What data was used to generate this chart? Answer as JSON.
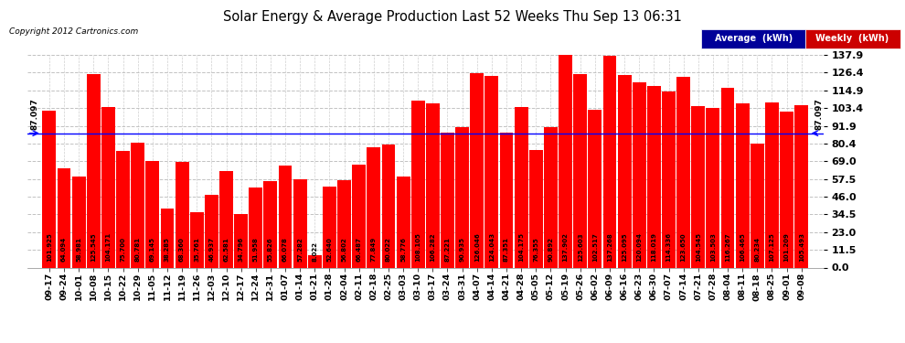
{
  "title": "Solar Energy & Average Production Last 52 Weeks Thu Sep 13 06:31",
  "copyright": "Copyright 2012 Cartronics.com",
  "average_line": 87.097,
  "average_label": "87.097",
  "bar_color": "#ff0000",
  "average_line_color": "#0000ff",
  "background_color": "#ffffff",
  "plot_bg_color": "#ffffff",
  "grid_color": "#bbbbbb",
  "ylim": [
    0,
    137.9
  ],
  "yticks": [
    0.0,
    11.5,
    23.0,
    34.5,
    46.0,
    57.5,
    69.0,
    80.4,
    91.9,
    103.4,
    114.9,
    126.4,
    137.9
  ],
  "legend_avg_color": "#000099",
  "legend_weekly_color": "#cc0000",
  "categories": [
    "09-17",
    "09-24",
    "10-01",
    "10-08",
    "10-15",
    "10-22",
    "10-29",
    "11-05",
    "11-12",
    "11-19",
    "11-26",
    "12-03",
    "12-10",
    "12-17",
    "12-24",
    "12-31",
    "01-07",
    "01-14",
    "01-21",
    "01-28",
    "02-04",
    "02-11",
    "02-18",
    "02-25",
    "03-03",
    "03-10",
    "03-17",
    "03-24",
    "03-31",
    "04-07",
    "04-14",
    "04-21",
    "04-28",
    "05-05",
    "05-12",
    "05-19",
    "05-26",
    "06-02",
    "06-09",
    "06-16",
    "06-23",
    "06-30",
    "07-07",
    "07-14",
    "07-21",
    "07-28",
    "08-04",
    "08-11",
    "08-18",
    "08-25",
    "09-01",
    "09-08"
  ],
  "values": [
    101.925,
    64.094,
    58.981,
    125.545,
    104.171,
    75.7,
    80.781,
    69.145,
    38.285,
    68.36,
    35.761,
    46.937,
    62.581,
    34.796,
    51.958,
    55.826,
    66.078,
    57.282,
    8.022,
    52.64,
    56.802,
    66.487,
    77.849,
    80.022,
    58.776,
    108.105,
    106.282,
    87.221,
    90.935,
    126.046,
    124.043,
    87.351,
    104.175,
    76.355,
    90.892,
    137.902,
    125.603,
    102.517,
    137.268,
    125.095,
    120.094,
    118.019,
    114.336,
    123.65,
    104.545,
    103.503,
    116.267,
    106.465,
    80.234,
    107.125,
    101.209,
    105.493
  ]
}
